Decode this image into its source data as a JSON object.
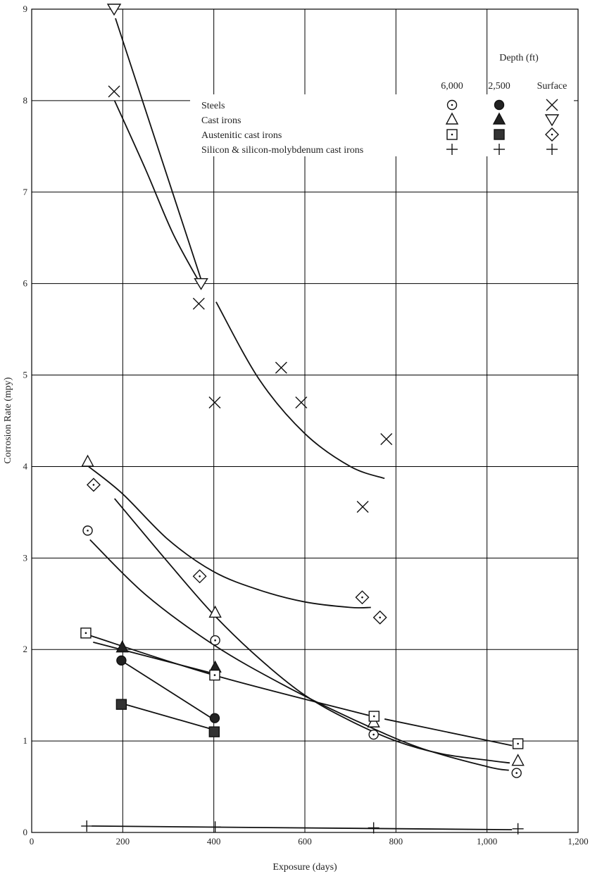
{
  "chart_data": {
    "type": "scatter",
    "title": "",
    "xlabel": "Exposure (days)",
    "ylabel": "Corrosion Rate (mpy)",
    "xlim": [
      0,
      1200
    ],
    "ylim": [
      0,
      9
    ],
    "grid": true,
    "xticks": [
      "0",
      "200",
      "400",
      "600",
      "800",
      "1,000",
      "1,200"
    ],
    "yticks": [
      "0",
      "1",
      "2",
      "3",
      "4",
      "5",
      "6",
      "7",
      "8",
      "9"
    ],
    "legend": {
      "position": "top-right",
      "title": "Depth (ft)",
      "depths": [
        "6,000",
        "2,500",
        "Surface"
      ],
      "materials": [
        "Steels",
        "Cast irons",
        "Austenitic cast irons",
        "Silicon & silicon-molybdenum cast irons"
      ],
      "markers": [
        [
          "circle-dot",
          "circle-filled",
          "x"
        ],
        [
          "triangle-up",
          "triangle-up-filled",
          "triangle-down"
        ],
        [
          "square-dot",
          "square-filled",
          "diamond-dot"
        ],
        [
          "plus",
          "plus",
          "plus"
        ]
      ]
    },
    "series": [
      {
        "material": "Steels",
        "depth": "6,000",
        "marker": "circle-dot",
        "x": [
          123,
          403,
          751,
          1065
        ],
        "y": [
          3.3,
          2.1,
          1.07,
          0.65
        ]
      },
      {
        "material": "Steels",
        "depth": "2,500",
        "marker": "circle-filled",
        "x": [
          197,
          402
        ],
        "y": [
          1.88,
          1.25
        ]
      },
      {
        "material": "Steels",
        "depth": "Surface",
        "marker": "x",
        "x": [
          181,
          367,
          402,
          548,
          592,
          727,
          779
        ],
        "y": [
          8.1,
          5.78,
          4.7,
          5.08,
          4.7,
          3.56,
          4.3
        ]
      },
      {
        "material": "Cast irons",
        "depth": "6,000",
        "marker": "triangle-up",
        "x": [
          123,
          403,
          751,
          1068
        ],
        "y": [
          4.05,
          2.4,
          1.2,
          0.78
        ]
      },
      {
        "material": "Cast irons",
        "depth": "2,500",
        "marker": "triangle-up-filled",
        "x": [
          199,
          403
        ],
        "y": [
          2.02,
          1.8
        ]
      },
      {
        "material": "Cast irons",
        "depth": "Surface",
        "marker": "triangle-down",
        "x": [
          181,
          372
        ],
        "y": [
          9.0,
          6.0
        ]
      },
      {
        "material": "Austenitic cast irons",
        "depth": "6,000",
        "marker": "square-dot",
        "x": [
          119,
          402,
          752,
          1068
        ],
        "y": [
          2.18,
          1.72,
          1.27,
          0.97
        ]
      },
      {
        "material": "Austenitic cast irons",
        "depth": "2,500",
        "marker": "square-filled",
        "x": [
          197,
          401
        ],
        "y": [
          1.4,
          1.1
        ]
      },
      {
        "material": "Austenitic cast irons",
        "depth": "Surface",
        "marker": "diamond-dot",
        "x": [
          136,
          369,
          726,
          765
        ],
        "y": [
          3.8,
          2.8,
          2.57,
          2.35
        ]
      },
      {
        "material": "Silicon & silicon-molybdenum cast irons",
        "depth": "all",
        "marker": "plus",
        "x": [
          121,
          403,
          751,
          1068
        ],
        "y": [
          0.07,
          0.06,
          0.05,
          0.04
        ]
      }
    ],
    "curves": [
      [
        [
          125,
          4.0
        ],
        [
          200,
          3.7
        ],
        [
          300,
          3.2
        ],
        [
          400,
          2.85
        ],
        [
          500,
          2.65
        ],
        [
          600,
          2.52
        ],
        [
          700,
          2.46
        ],
        [
          745,
          2.46
        ]
      ],
      [
        [
          182,
          3.65
        ],
        [
          300,
          2.95
        ],
        [
          400,
          2.38
        ],
        [
          500,
          1.9
        ],
        [
          600,
          1.5
        ],
        [
          700,
          1.22
        ],
        [
          800,
          1.0
        ],
        [
          900,
          0.86
        ],
        [
          1000,
          0.79
        ],
        [
          1050,
          0.76
        ]
      ],
      [
        [
          128,
          3.2
        ],
        [
          250,
          2.6
        ],
        [
          400,
          2.05
        ],
        [
          550,
          1.62
        ],
        [
          700,
          1.25
        ],
        [
          850,
          0.93
        ],
        [
          1000,
          0.72
        ],
        [
          1048,
          0.68
        ]
      ],
      [
        [
          130,
          2.15
        ],
        [
          400,
          1.72
        ],
        [
          740,
          1.28
        ]
      ],
      [
        [
          775,
          1.24
        ],
        [
          1055,
          0.95
        ]
      ],
      [
        [
          135,
          2.08
        ],
        [
          405,
          1.73
        ]
      ],
      [
        [
          190,
          1.9
        ],
        [
          395,
          1.25
        ]
      ],
      [
        [
          205,
          1.4
        ],
        [
          395,
          1.13
        ]
      ],
      [
        [
          132,
          0.07
        ],
        [
          1055,
          0.03
        ]
      ],
      [
        [
          184,
          8.9
        ],
        [
          375,
          6.0
        ]
      ],
      [
        [
          182,
          8.0
        ],
        [
          250,
          7.25
        ],
        [
          310,
          6.55
        ],
        [
          370,
          6.0
        ]
      ],
      [
        [
          405,
          5.8
        ],
        [
          500,
          4.95
        ],
        [
          600,
          4.36
        ],
        [
          700,
          4.0
        ],
        [
          775,
          3.87
        ]
      ]
    ]
  }
}
